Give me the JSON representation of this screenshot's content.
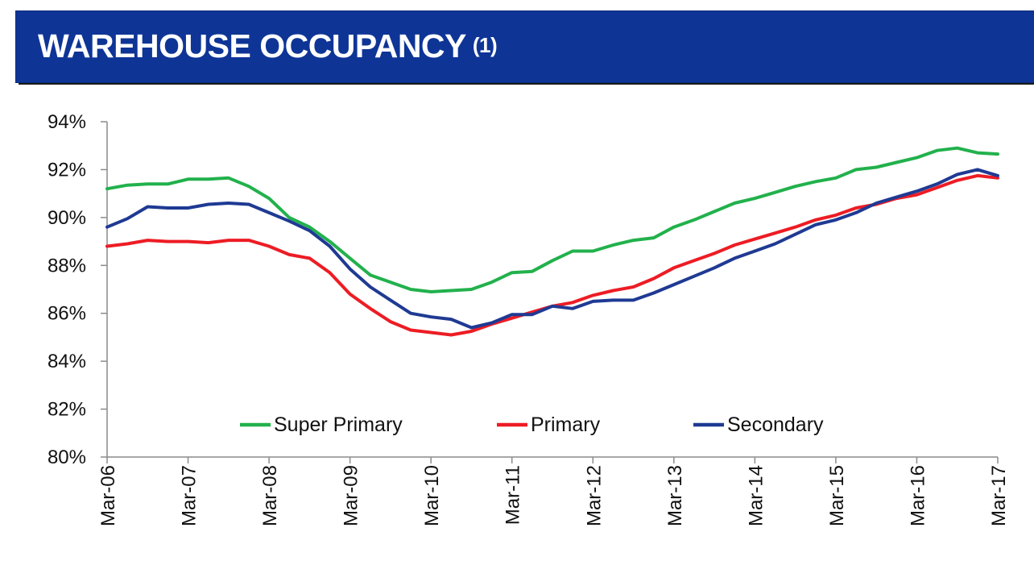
{
  "header": {
    "title": "WAREHOUSE OCCUPANCY",
    "footnote": "(1)"
  },
  "chart_data": {
    "type": "line",
    "title": "WAREHOUSE OCCUPANCY (1)",
    "xlabel": "",
    "ylabel": "",
    "x_tick_labels": [
      "Mar-06",
      "Mar-07",
      "Mar-08",
      "Mar-09",
      "Mar-10",
      "Mar-11",
      "Mar-12",
      "Mar-13",
      "Mar-14",
      "Mar-15",
      "Mar-16",
      "Mar-17"
    ],
    "y_tick_labels": [
      "80%",
      "82%",
      "84%",
      "86%",
      "88%",
      "90%",
      "92%",
      "94%"
    ],
    "ylim": [
      80,
      94
    ],
    "y_ticks": [
      80,
      82,
      84,
      86,
      88,
      90,
      92,
      94
    ],
    "x_start": "Mar-06",
    "x_end": "Mar-17",
    "frequency": "quarterly",
    "legend_position": "bottom",
    "grid": false,
    "series": [
      {
        "name": "Super Primary",
        "color": "#22b14c",
        "values": [
          91.2,
          91.35,
          91.4,
          91.4,
          91.6,
          91.6,
          91.65,
          91.3,
          90.8,
          90.0,
          89.6,
          89.0,
          88.3,
          87.6,
          87.3,
          87.0,
          86.9,
          86.95,
          87.0,
          87.3,
          87.7,
          87.75,
          88.2,
          88.6,
          88.6,
          88.85,
          89.05,
          89.15,
          89.6,
          89.9,
          90.25,
          90.6,
          90.8,
          91.05,
          91.3,
          91.5,
          91.65,
          92.0,
          92.1,
          92.3,
          92.5,
          92.8,
          92.9,
          92.7,
          92.65
        ]
      },
      {
        "name": "Primary",
        "color": "#ed1c24",
        "values": [
          88.8,
          88.9,
          89.05,
          89.0,
          89.0,
          88.95,
          89.05,
          89.05,
          88.8,
          88.45,
          88.3,
          87.7,
          86.8,
          86.2,
          85.65,
          85.3,
          85.2,
          85.1,
          85.25,
          85.55,
          85.8,
          86.05,
          86.3,
          86.45,
          86.75,
          86.95,
          87.1,
          87.45,
          87.9,
          88.2,
          88.5,
          88.85,
          89.1,
          89.35,
          89.6,
          89.9,
          90.1,
          90.4,
          90.55,
          90.8,
          90.95,
          91.25,
          91.55,
          91.75,
          91.65
        ]
      },
      {
        "name": "Secondary",
        "color": "#1f3a93",
        "values": [
          89.6,
          89.95,
          90.45,
          90.4,
          90.4,
          90.55,
          90.6,
          90.55,
          90.2,
          89.85,
          89.45,
          88.8,
          87.85,
          87.1,
          86.55,
          86.0,
          85.85,
          85.75,
          85.4,
          85.6,
          85.95,
          85.95,
          86.3,
          86.2,
          86.5,
          86.55,
          86.55,
          86.85,
          87.2,
          87.55,
          87.9,
          88.3,
          88.6,
          88.9,
          89.3,
          89.7,
          89.9,
          90.2,
          90.6,
          90.85,
          91.1,
          91.4,
          91.8,
          92.0,
          91.75
        ]
      }
    ]
  }
}
